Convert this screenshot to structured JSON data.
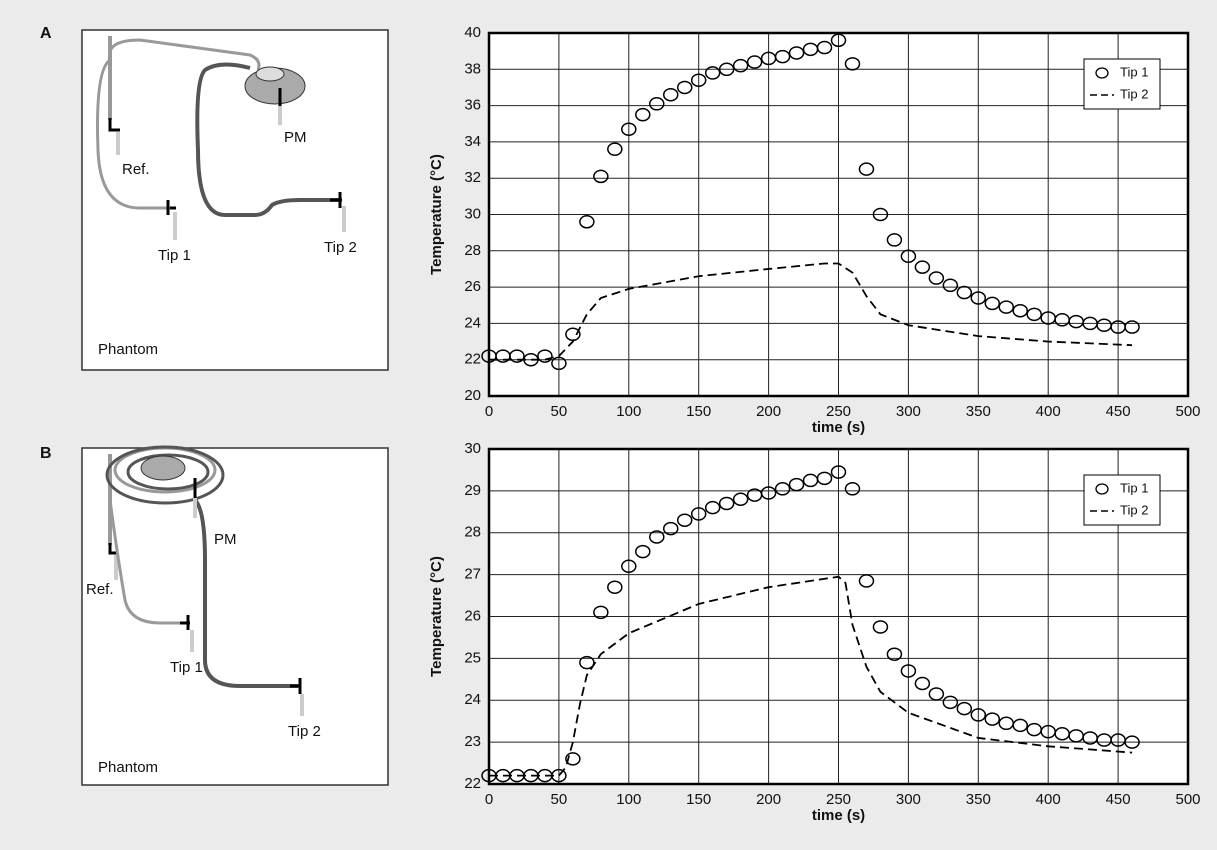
{
  "panels": [
    {
      "label": "A",
      "diagram": {
        "reference": "Ref.",
        "device": "PM",
        "tip1": "Tip 1",
        "tip2": "Tip 2",
        "phantom": "Phantom"
      }
    },
    {
      "label": "B",
      "diagram": {
        "reference": "Ref.",
        "device": "PM",
        "tip1": "Tip 1",
        "tip2": "Tip 2",
        "phantom": "Phantom"
      }
    }
  ],
  "chart_data": [
    {
      "type": "scatter",
      "x_label": "time (s)",
      "y_label": "Temperature (°C)",
      "xlim": [
        0,
        500
      ],
      "xticks": [
        0,
        50,
        100,
        150,
        200,
        250,
        300,
        350,
        400,
        450,
        500
      ],
      "ylim": [
        20,
        40
      ],
      "yticks": [
        20,
        22,
        24,
        26,
        28,
        30,
        32,
        34,
        36,
        38,
        40
      ],
      "grid": true,
      "legend": "upper right",
      "series": [
        {
          "name": "Tip 1",
          "style": "marker",
          "color": "#000000",
          "x": [
            0,
            10,
            20,
            30,
            40,
            50,
            60,
            70,
            80,
            90,
            100,
            110,
            120,
            130,
            140,
            150,
            160,
            170,
            180,
            190,
            200,
            210,
            220,
            230,
            240,
            250,
            260,
            270,
            280,
            290,
            300,
            310,
            320,
            330,
            340,
            350,
            360,
            370,
            380,
            390,
            400,
            410,
            420,
            430,
            440,
            450,
            460
          ],
          "values": [
            22.2,
            22.2,
            22.2,
            22.0,
            22.2,
            21.8,
            23.4,
            29.6,
            32.1,
            33.6,
            34.7,
            35.5,
            36.1,
            36.6,
            37.0,
            37.4,
            37.8,
            38.0,
            38.2,
            38.4,
            38.6,
            38.7,
            38.9,
            39.1,
            39.2,
            39.6,
            38.3,
            32.5,
            30.0,
            28.6,
            27.7,
            27.1,
            26.5,
            26.1,
            25.7,
            25.4,
            25.1,
            24.9,
            24.7,
            24.5,
            24.3,
            24.2,
            24.1,
            24.0,
            23.9,
            23.8,
            23.8
          ]
        },
        {
          "name": "Tip 2",
          "style": "dashed",
          "color": "#000000",
          "x": [
            0,
            40,
            50,
            60,
            70,
            80,
            100,
            150,
            200,
            240,
            250,
            260,
            270,
            280,
            300,
            350,
            400,
            460
          ],
          "values": [
            22.0,
            22.0,
            22.2,
            23.0,
            24.5,
            25.4,
            25.9,
            26.6,
            27.0,
            27.3,
            27.3,
            26.8,
            25.5,
            24.5,
            23.9,
            23.3,
            23.0,
            22.8
          ]
        }
      ]
    },
    {
      "type": "scatter",
      "x_label": "time (s)",
      "y_label": "Temperature (°C)",
      "xlim": [
        0,
        500
      ],
      "xticks": [
        0,
        50,
        100,
        150,
        200,
        250,
        300,
        350,
        400,
        450,
        500
      ],
      "ylim": [
        22,
        30
      ],
      "yticks": [
        22,
        23,
        24,
        25,
        26,
        27,
        28,
        29,
        30
      ],
      "grid": true,
      "legend": "upper right",
      "series": [
        {
          "name": "Tip 1",
          "style": "marker",
          "color": "#000000",
          "x": [
            0,
            10,
            20,
            30,
            40,
            50,
            60,
            70,
            80,
            90,
            100,
            110,
            120,
            130,
            140,
            150,
            160,
            170,
            180,
            190,
            200,
            210,
            220,
            230,
            240,
            250,
            260,
            270,
            280,
            290,
            300,
            310,
            320,
            330,
            340,
            350,
            360,
            370,
            380,
            390,
            400,
            410,
            420,
            430,
            440,
            450,
            460
          ],
          "values": [
            22.2,
            22.2,
            22.2,
            22.2,
            22.2,
            22.2,
            22.6,
            24.9,
            26.1,
            26.7,
            27.2,
            27.55,
            27.9,
            28.1,
            28.3,
            28.45,
            28.6,
            28.7,
            28.8,
            28.9,
            28.95,
            29.05,
            29.15,
            29.25,
            29.3,
            29.45,
            29.05,
            26.85,
            25.75,
            25.1,
            24.7,
            24.4,
            24.15,
            23.95,
            23.8,
            23.65,
            23.55,
            23.45,
            23.4,
            23.3,
            23.25,
            23.2,
            23.15,
            23.1,
            23.05,
            23.05,
            23.0
          ]
        },
        {
          "name": "Tip 2",
          "style": "dashed",
          "color": "#000000",
          "x": [
            0,
            50,
            55,
            60,
            65,
            70,
            80,
            100,
            150,
            200,
            250,
            255,
            260,
            270,
            280,
            300,
            350,
            400,
            460
          ],
          "values": [
            22.2,
            22.2,
            22.4,
            23.0,
            23.9,
            24.6,
            25.1,
            25.6,
            26.3,
            26.7,
            26.95,
            26.8,
            25.8,
            24.8,
            24.2,
            23.7,
            23.1,
            22.9,
            22.75
          ]
        }
      ]
    }
  ]
}
